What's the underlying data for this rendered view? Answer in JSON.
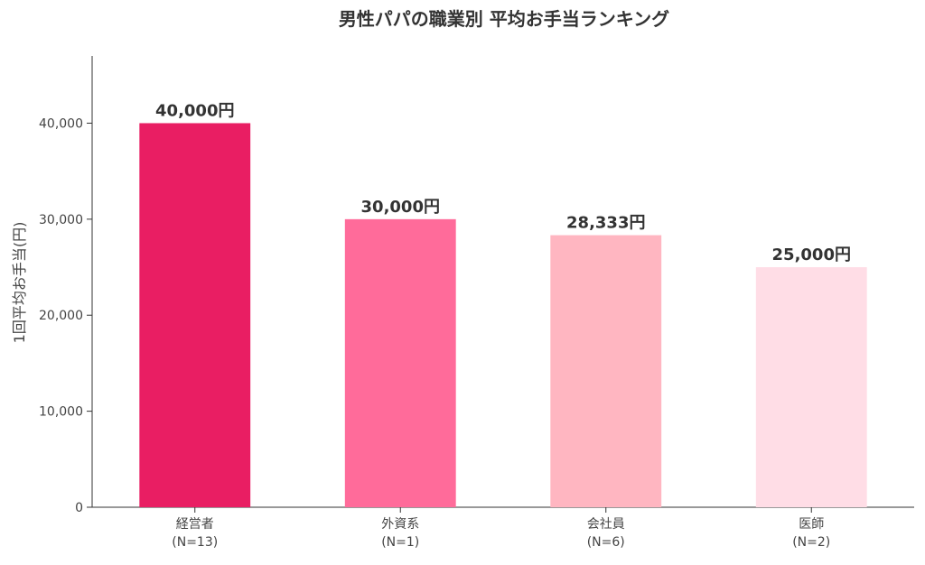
{
  "chart_data": {
    "type": "bar",
    "title": "男性パパの職業別 平均お手当ランキング",
    "xlabel": "",
    "ylabel": "1回平均お手当(円)",
    "ylim": [
      0,
      47000
    ],
    "yticks": [
      0,
      10000,
      20000,
      30000,
      40000
    ],
    "ytick_labels": [
      "0",
      "10,000",
      "20,000",
      "30,000",
      "40,000"
    ],
    "categories": [
      "経営者",
      "外資系",
      "会社員",
      "医師"
    ],
    "category_sublabels": [
      "(N=13)",
      "(N=1)",
      "(N=6)",
      "(N=2)"
    ],
    "values": [
      40000,
      30000,
      28333,
      25000
    ],
    "value_labels": [
      "40,000円",
      "30,000円",
      "28,333円",
      "25,000円"
    ],
    "colors": [
      "#e91e63",
      "#ff6b9a",
      "#ffb6c1",
      "#ffdde6"
    ],
    "grid": false,
    "legend": "none"
  }
}
